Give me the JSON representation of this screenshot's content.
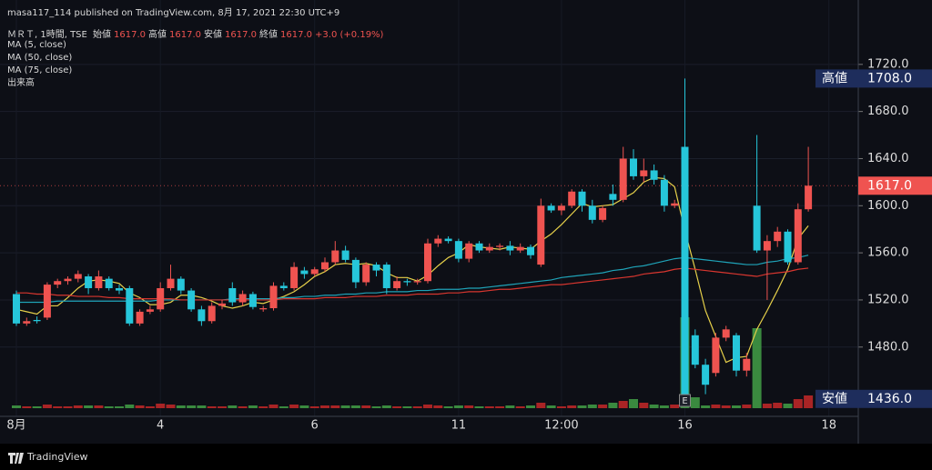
{
  "header": {
    "published": "masa117_114 published on TradingView.com, 8月 17, 2021 22:30 UTC+9",
    "symbol": "ＭＲＴ, 1時間, TSE",
    "ohlc_legend": [
      {
        "label": "始値",
        "value": "1617.0"
      },
      {
        "label": "高値",
        "value": "1617.0"
      },
      {
        "label": "安値",
        "value": "1617.0"
      },
      {
        "label": "終値",
        "value": "1617.0"
      }
    ],
    "change": "+3.0 (+0.19%)",
    "indicators": [
      "MA (5, close)",
      "MA (50, close)",
      "MA (75, close)",
      "出来高"
    ]
  },
  "footer": {
    "brand": "TradingView"
  },
  "chart_data": {
    "type": "candlestick",
    "categories": [
      "8月",
      null,
      null,
      null,
      null,
      null,
      null,
      null,
      null,
      null,
      null,
      null,
      null,
      null,
      "4",
      null,
      null,
      null,
      null,
      null,
      null,
      null,
      null,
      null,
      null,
      null,
      null,
      null,
      null,
      "6",
      null,
      null,
      null,
      null,
      null,
      null,
      null,
      null,
      null,
      null,
      null,
      null,
      null,
      "11",
      null,
      null,
      null,
      null,
      null,
      null,
      null,
      null,
      null,
      "12:00",
      null,
      null,
      null,
      null,
      null,
      null,
      null,
      null,
      null,
      null,
      null,
      "16",
      null,
      null,
      null,
      null,
      null,
      null,
      null,
      null,
      null,
      null,
      null,
      null,
      null,
      "18"
    ],
    "open": [
      1525,
      1500,
      1503,
      1505,
      1533,
      1536,
      1538,
      1540,
      1530,
      1538,
      1530,
      1530,
      1500,
      1510,
      1512,
      1530,
      1538,
      1528,
      1512,
      1502,
      1515,
      1530,
      1518,
      1525,
      1512,
      1513,
      1532,
      1530,
      1545,
      1542,
      1546,
      1552,
      1562,
      1554,
      1535,
      1550,
      1550,
      1530,
      1536,
      1535,
      1536,
      1568,
      1572,
      1570,
      1555,
      1568,
      1562,
      1565,
      1566,
      1562,
      1565,
      1550,
      1600,
      1596,
      1600,
      1612,
      1600,
      1588,
      1610,
      1605,
      1640,
      1625,
      1630,
      1622,
      1600,
      1650,
      1490,
      1465,
      1458,
      1488,
      1490,
      1460,
      1600,
      1562,
      1570,
      1578,
      1552,
      1597,
      null,
      null
    ],
    "high": [
      1528,
      1505,
      1506,
      1535,
      1538,
      1540,
      1545,
      1542,
      1545,
      1540,
      1533,
      1532,
      1512,
      1515,
      1535,
      1550,
      1540,
      1530,
      1515,
      1518,
      1520,
      1535,
      1528,
      1527,
      1515,
      1535,
      1535,
      1552,
      1548,
      1548,
      1556,
      1570,
      1566,
      1556,
      1552,
      1552,
      1552,
      1540,
      1538,
      1538,
      1572,
      1575,
      1574,
      1572,
      1570,
      1570,
      1568,
      1568,
      1570,
      1568,
      1567,
      1606,
      1602,
      1602,
      1614,
      1614,
      1605,
      1600,
      1618,
      1650,
      1648,
      1640,
      1635,
      1626,
      1605,
      1708,
      1495,
      1470,
      1492,
      1498,
      1492,
      1475,
      1660,
      1575,
      1582,
      1580,
      1602,
      1650,
      null,
      null
    ],
    "low": [
      1498,
      1498,
      1500,
      1503,
      1530,
      1533,
      1535,
      1525,
      1528,
      1528,
      1525,
      1498,
      1498,
      1508,
      1510,
      1528,
      1525,
      1510,
      1498,
      1500,
      1512,
      1515,
      1515,
      1512,
      1510,
      1511,
      1528,
      1528,
      1538,
      1540,
      1544,
      1550,
      1552,
      1530,
      1532,
      1540,
      1525,
      1528,
      1532,
      1533,
      1534,
      1565,
      1568,
      1552,
      1552,
      1560,
      1560,
      1562,
      1558,
      1560,
      1555,
      1548,
      1594,
      1592,
      1598,
      1595,
      1585,
      1586,
      1600,
      1603,
      1622,
      1620,
      1618,
      1595,
      1598,
      1436,
      1462,
      1440,
      1455,
      1485,
      1455,
      1455,
      1560,
      1520,
      1565,
      1550,
      1550,
      1595,
      null,
      null
    ],
    "close": [
      1500,
      1502,
      1502,
      1533,
      1536,
      1538,
      1542,
      1530,
      1540,
      1530,
      1528,
      1500,
      1510,
      1512,
      1530,
      1538,
      1528,
      1512,
      1502,
      1515,
      1517,
      1518,
      1525,
      1514,
      1513,
      1532,
      1530,
      1548,
      1542,
      1546,
      1552,
      1562,
      1554,
      1535,
      1550,
      1545,
      1530,
      1536,
      1535,
      1536,
      1568,
      1572,
      1570,
      1555,
      1568,
      1562,
      1565,
      1566,
      1562,
      1565,
      1558,
      1600,
      1596,
      1600,
      1612,
      1600,
      1588,
      1598,
      1605,
      1640,
      1625,
      1630,
      1622,
      1600,
      1602,
      1440,
      1465,
      1448,
      1488,
      1495,
      1460,
      1470,
      1562,
      1570,
      1578,
      1552,
      1597,
      1617,
      null,
      null
    ],
    "volume": [
      3,
      2,
      2,
      4,
      2,
      2,
      3,
      3,
      3,
      2,
      2,
      4,
      3,
      2,
      5,
      4,
      3,
      3,
      3,
      2,
      2,
      3,
      2,
      3,
      2,
      4,
      2,
      4,
      3,
      2,
      3,
      3,
      3,
      3,
      3,
      2,
      3,
      2,
      2,
      2,
      4,
      3,
      2,
      3,
      3,
      2,
      2,
      2,
      3,
      2,
      3,
      6,
      3,
      2,
      3,
      3,
      4,
      4,
      6,
      8,
      10,
      6,
      4,
      3,
      4,
      100,
      12,
      3,
      4,
      3,
      3,
      4,
      88,
      5,
      6,
      5,
      10,
      14,
      null,
      null
    ],
    "up_color": "#ef5350",
    "down_color": "#26c6da",
    "volume_up_color": "#c62828",
    "volume_down_color": "#43a047",
    "series": [
      {
        "name": "MA (5, close)",
        "color": "#e6d04a",
        "values": [
          1512,
          1510,
          1508,
          1515,
          1515,
          1522,
          1530,
          1536,
          1537,
          1536,
          1534,
          1526,
          1522,
          1516,
          1516,
          1518,
          1524,
          1524,
          1522,
          1519,
          1515,
          1513,
          1515,
          1518,
          1517,
          1520,
          1523,
          1527,
          1533,
          1540,
          1544,
          1550,
          1551,
          1550,
          1551,
          1549,
          1543,
          1539,
          1539,
          1536,
          1541,
          1549,
          1556,
          1560,
          1567,
          1565,
          1564,
          1563,
          1565,
          1564,
          1563,
          1570,
          1576,
          1584,
          1593,
          1602,
          1599,
          1600,
          1601,
          1606,
          1611,
          1620,
          1624,
          1623,
          1616,
          1579,
          1546,
          1511,
          1489,
          1467,
          1471,
          1472,
          1495,
          1511,
          1528,
          1546,
          1572,
          1583,
          null,
          null
        ]
      },
      {
        "name": "MA (50, close)",
        "color": "#1fa3b8",
        "values": [
          1518,
          1518,
          1518,
          1518,
          1519,
          1519,
          1519,
          1519,
          1519,
          1519,
          1519,
          1519,
          1519,
          1519,
          1520,
          1520,
          1520,
          1520,
          1520,
          1520,
          1520,
          1521,
          1521,
          1521,
          1521,
          1521,
          1522,
          1522,
          1523,
          1523,
          1524,
          1524,
          1525,
          1525,
          1526,
          1526,
          1527,
          1527,
          1527,
          1528,
          1528,
          1529,
          1529,
          1529,
          1530,
          1530,
          1531,
          1532,
          1533,
          1534,
          1535,
          1536,
          1537,
          1539,
          1540,
          1541,
          1542,
          1543,
          1545,
          1546,
          1548,
          1549,
          1551,
          1553,
          1555,
          1556,
          1555,
          1554,
          1553,
          1552,
          1551,
          1550,
          1550,
          1552,
          1553,
          1555,
          1556,
          1558,
          null,
          null
        ]
      },
      {
        "name": "MA (75, close)",
        "color": "#d8362f",
        "values": [
          1526,
          1526,
          1525,
          1525,
          1524,
          1524,
          1523,
          1523,
          1523,
          1522,
          1522,
          1521,
          1521,
          1521,
          1521,
          1521,
          1520,
          1520,
          1520,
          1520,
          1520,
          1520,
          1520,
          1520,
          1520,
          1520,
          1521,
          1521,
          1521,
          1521,
          1522,
          1522,
          1522,
          1523,
          1523,
          1523,
          1524,
          1524,
          1524,
          1525,
          1525,
          1525,
          1526,
          1526,
          1527,
          1527,
          1528,
          1529,
          1529,
          1530,
          1531,
          1532,
          1533,
          1533,
          1534,
          1535,
          1536,
          1537,
          1538,
          1539,
          1540,
          1542,
          1543,
          1544,
          1546,
          1547,
          1546,
          1545,
          1544,
          1543,
          1542,
          1541,
          1540,
          1542,
          1543,
          1544,
          1546,
          1547,
          null,
          null
        ]
      }
    ],
    "ylim": [
      1420,
      1760
    ],
    "yticks": [
      {
        "value": 1720,
        "label": "1720.0"
      },
      {
        "value": 1680,
        "label": "1680.0"
      },
      {
        "value": 1640,
        "label": "1640.0"
      },
      {
        "value": 1600,
        "label": "1600.0"
      },
      {
        "value": 1560,
        "label": "1560.0"
      },
      {
        "value": 1520,
        "label": "1520.0"
      },
      {
        "value": 1480,
        "label": "1480.0"
      }
    ],
    "high_marker": {
      "label": "高値",
      "value": 1708,
      "value_label": "1708.0"
    },
    "low_marker": {
      "label": "安値",
      "value": 1436,
      "value_label": "1436.0"
    },
    "last_price": {
      "value": 1617,
      "value_label": "1617.0"
    },
    "event_marker": "E",
    "grid": true
  }
}
